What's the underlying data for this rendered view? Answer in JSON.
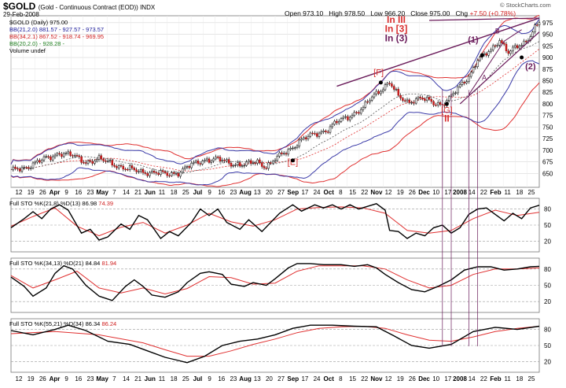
{
  "header": {
    "symbol": "$GOLD",
    "description": "(Gold - Continuous Contract (EOD)) INDX",
    "date": "29-Feb-2008",
    "open_label": "Open",
    "open": "973.10",
    "high_label": "High",
    "high": "978.50",
    "low_label": "Low",
    "low": "966.20",
    "close_label": "Close",
    "close": "975.00",
    "chg_label": "Chg",
    "chg": "+7.50 (+0.78%)",
    "watermark": "© StockCharts.com"
  },
  "legend": [
    {
      "text": "$GOLD (Daily) 975.00",
      "color": "#000000"
    },
    {
      "text": "BB(21,2.0) 881.57 - 927.57 - 973.57",
      "color": "#1a1a9a"
    },
    {
      "text": "BB(34,2.1) 867.52 - 918.74 - 969.95",
      "color": "#d02020"
    },
    {
      "text": "BB(20,2.0) - 928.28 -",
      "color": "#208020"
    },
    {
      "text": "Volume undef",
      "color": "#000000"
    }
  ],
  "annotations": {
    "in_big": "In III",
    "in_mid": "In [3]",
    "in_small": "In (3)",
    "F": "[F]",
    "E": "[E]",
    "G": "[G]",
    "II": "II",
    "one": "(1)",
    "two": "(2)",
    "A": "A",
    "B": "B"
  },
  "xaxis_labels": [
    "12",
    "19",
    "26",
    "Apr",
    "9",
    "16",
    "23",
    "May",
    "7",
    "14",
    "21",
    "Jun",
    "11",
    "18",
    "25",
    "Jul",
    "9",
    "16",
    "23",
    "Aug",
    "13",
    "20",
    "27",
    "Sep",
    "17",
    "24",
    "Oct",
    "8",
    "15",
    "22",
    "Nov",
    "12",
    "19",
    "26",
    "Dec",
    "10",
    "17",
    "2008",
    "14",
    "22",
    "Feb",
    "11",
    "18",
    "25"
  ],
  "indicators": [
    {
      "label": "Full STO %K(21,8) %D(13)",
      "k_value": "86.98",
      "d_value": "74.39"
    },
    {
      "label": "Full STO %K(34,13) %D(21)",
      "k_value": "84.84",
      "d_value": "81.94"
    },
    {
      "label": "Full STO %K(55,21) %D(34)",
      "k_value": "86.34",
      "d_value": "86.24"
    }
  ],
  "chart_data": {
    "type": "line",
    "title": "$GOLD (Gold - Continuous Contract (EOD)) INDX",
    "price_ylim": [
      620,
      990
    ],
    "price_ticks": [
      650,
      675,
      700,
      725,
      750,
      775,
      800,
      825,
      850,
      875,
      900,
      925,
      950,
      975
    ],
    "x_days": 240,
    "price_keys": [
      [
        0,
        655
      ],
      [
        6,
        662
      ],
      [
        12,
        675
      ],
      [
        18,
        685
      ],
      [
        22,
        695
      ],
      [
        28,
        688
      ],
      [
        34,
        675
      ],
      [
        40,
        680
      ],
      [
        46,
        672
      ],
      [
        52,
        660
      ],
      [
        58,
        655
      ],
      [
        64,
        652
      ],
      [
        70,
        648
      ],
      [
        76,
        652
      ],
      [
        82,
        668
      ],
      [
        88,
        680
      ],
      [
        94,
        680
      ],
      [
        100,
        672
      ],
      [
        106,
        668
      ],
      [
        112,
        675
      ],
      [
        116,
        665
      ],
      [
        120,
        680
      ],
      [
        126,
        700
      ],
      [
        132,
        722
      ],
      [
        138,
        735
      ],
      [
        144,
        745
      ],
      [
        148,
        760
      ],
      [
        154,
        775
      ],
      [
        160,
        790
      ],
      [
        164,
        815
      ],
      [
        168,
        832
      ],
      [
        172,
        846
      ],
      [
        176,
        815
      ],
      [
        180,
        805
      ],
      [
        186,
        812
      ],
      [
        192,
        802
      ],
      [
        196,
        800
      ],
      [
        200,
        815
      ],
      [
        204,
        838
      ],
      [
        208,
        860
      ],
      [
        212,
        895
      ],
      [
        214,
        900
      ],
      [
        218,
        915
      ],
      [
        222,
        940
      ],
      [
        226,
        910
      ],
      [
        230,
        922
      ],
      [
        234,
        935
      ],
      [
        238,
        965
      ],
      [
        240,
        975
      ]
    ],
    "sto_ticks": [
      20,
      50,
      80
    ],
    "stoch1": {
      "k": [
        [
          0,
          45
        ],
        [
          6,
          62
        ],
        [
          10,
          75
        ],
        [
          14,
          62
        ],
        [
          18,
          80
        ],
        [
          22,
          88
        ],
        [
          26,
          78
        ],
        [
          32,
          35
        ],
        [
          36,
          42
        ],
        [
          40,
          22
        ],
        [
          44,
          28
        ],
        [
          50,
          52
        ],
        [
          54,
          42
        ],
        [
          58,
          68
        ],
        [
          62,
          60
        ],
        [
          68,
          25
        ],
        [
          72,
          38
        ],
        [
          76,
          30
        ],
        [
          82,
          55
        ],
        [
          86,
          80
        ],
        [
          90,
          68
        ],
        [
          94,
          80
        ],
        [
          98,
          55
        ],
        [
          104,
          42
        ],
        [
          108,
          60
        ],
        [
          114,
          38
        ],
        [
          118,
          55
        ],
        [
          122,
          72
        ],
        [
          128,
          88
        ],
        [
          132,
          76
        ],
        [
          138,
          88
        ],
        [
          142,
          82
        ],
        [
          146,
          88
        ],
        [
          150,
          80
        ],
        [
          154,
          88
        ],
        [
          158,
          80
        ],
        [
          162,
          85
        ],
        [
          166,
          90
        ],
        [
          170,
          78
        ],
        [
          172,
          40
        ],
        [
          176,
          38
        ],
        [
          180,
          25
        ],
        [
          184,
          35
        ],
        [
          188,
          30
        ],
        [
          192,
          45
        ],
        [
          196,
          50
        ],
        [
          200,
          35
        ],
        [
          204,
          45
        ],
        [
          208,
          70
        ],
        [
          212,
          80
        ],
        [
          216,
          82
        ],
        [
          220,
          70
        ],
        [
          224,
          58
        ],
        [
          228,
          72
        ],
        [
          232,
          62
        ],
        [
          236,
          82
        ],
        [
          240,
          87
        ]
      ],
      "d": [
        [
          0,
          48
        ],
        [
          10,
          66
        ],
        [
          20,
          82
        ],
        [
          30,
          48
        ],
        [
          40,
          30
        ],
        [
          50,
          46
        ],
        [
          60,
          55
        ],
        [
          70,
          35
        ],
        [
          80,
          50
        ],
        [
          90,
          72
        ],
        [
          100,
          56
        ],
        [
          110,
          48
        ],
        [
          120,
          60
        ],
        [
          130,
          80
        ],
        [
          140,
          83
        ],
        [
          150,
          84
        ],
        [
          160,
          82
        ],
        [
          170,
          72
        ],
        [
          180,
          40
        ],
        [
          190,
          35
        ],
        [
          200,
          40
        ],
        [
          210,
          62
        ],
        [
          220,
          78
        ],
        [
          230,
          68
        ],
        [
          240,
          74
        ]
      ]
    },
    "stoch2": {
      "k": [
        [
          0,
          65
        ],
        [
          6,
          48
        ],
        [
          10,
          30
        ],
        [
          16,
          45
        ],
        [
          20,
          72
        ],
        [
          24,
          86
        ],
        [
          28,
          80
        ],
        [
          34,
          50
        ],
        [
          40,
          30
        ],
        [
          46,
          22
        ],
        [
          52,
          48
        ],
        [
          56,
          60
        ],
        [
          60,
          48
        ],
        [
          64,
          32
        ],
        [
          70,
          28
        ],
        [
          76,
          38
        ],
        [
          80,
          55
        ],
        [
          86,
          72
        ],
        [
          90,
          75
        ],
        [
          96,
          70
        ],
        [
          100,
          52
        ],
        [
          106,
          48
        ],
        [
          110,
          55
        ],
        [
          116,
          50
        ],
        [
          120,
          62
        ],
        [
          126,
          82
        ],
        [
          130,
          90
        ],
        [
          136,
          90
        ],
        [
          142,
          88
        ],
        [
          150,
          88
        ],
        [
          156,
          85
        ],
        [
          162,
          88
        ],
        [
          166,
          82
        ],
        [
          170,
          70
        ],
        [
          176,
          55
        ],
        [
          182,
          42
        ],
        [
          188,
          38
        ],
        [
          194,
          48
        ],
        [
          200,
          60
        ],
        [
          206,
          78
        ],
        [
          212,
          84
        ],
        [
          218,
          84
        ],
        [
          224,
          78
        ],
        [
          230,
          80
        ],
        [
          236,
          84
        ],
        [
          240,
          85
        ]
      ],
      "d": [
        [
          0,
          68
        ],
        [
          10,
          45
        ],
        [
          20,
          60
        ],
        [
          30,
          76
        ],
        [
          40,
          45
        ],
        [
          50,
          36
        ],
        [
          60,
          45
        ],
        [
          70,
          34
        ],
        [
          80,
          44
        ],
        [
          90,
          66
        ],
        [
          100,
          64
        ],
        [
          110,
          52
        ],
        [
          120,
          54
        ],
        [
          130,
          76
        ],
        [
          140,
          86
        ],
        [
          150,
          86
        ],
        [
          160,
          86
        ],
        [
          170,
          80
        ],
        [
          180,
          60
        ],
        [
          190,
          45
        ],
        [
          200,
          50
        ],
        [
          210,
          70
        ],
        [
          220,
          80
        ],
        [
          230,
          80
        ],
        [
          240,
          82
        ]
      ]
    },
    "stoch3": {
      "k": [
        [
          0,
          78
        ],
        [
          10,
          70
        ],
        [
          20,
          80
        ],
        [
          26,
          88
        ],
        [
          34,
          78
        ],
        [
          44,
          58
        ],
        [
          54,
          52
        ],
        [
          62,
          40
        ],
        [
          70,
          28
        ],
        [
          76,
          22
        ],
        [
          80,
          18
        ],
        [
          88,
          30
        ],
        [
          96,
          50
        ],
        [
          104,
          58
        ],
        [
          112,
          62
        ],
        [
          120,
          70
        ],
        [
          128,
          82
        ],
        [
          136,
          88
        ],
        [
          146,
          88
        ],
        [
          156,
          86
        ],
        [
          166,
          85
        ],
        [
          174,
          68
        ],
        [
          182,
          50
        ],
        [
          190,
          45
        ],
        [
          200,
          52
        ],
        [
          210,
          76
        ],
        [
          220,
          84
        ],
        [
          230,
          80
        ],
        [
          240,
          86
        ]
      ],
      "d": [
        [
          0,
          72
        ],
        [
          20,
          76
        ],
        [
          40,
          70
        ],
        [
          60,
          55
        ],
        [
          70,
          42
        ],
        [
          80,
          30
        ],
        [
          90,
          30
        ],
        [
          100,
          40
        ],
        [
          110,
          52
        ],
        [
          120,
          62
        ],
        [
          130,
          74
        ],
        [
          140,
          82
        ],
        [
          150,
          85
        ],
        [
          160,
          86
        ],
        [
          170,
          82
        ],
        [
          180,
          70
        ],
        [
          190,
          60
        ],
        [
          200,
          58
        ],
        [
          210,
          66
        ],
        [
          220,
          76
        ],
        [
          230,
          82
        ],
        [
          240,
          86
        ]
      ]
    }
  },
  "colors": {
    "price": "#000000",
    "bb21": "#3a3aa8",
    "bb34": "#e03030",
    "sto_k": "#000000",
    "sto_d": "#e03030",
    "annotation_red": "#d83030",
    "annotation_purple": "#6a1b5a",
    "grid": "#d6d6d6"
  }
}
